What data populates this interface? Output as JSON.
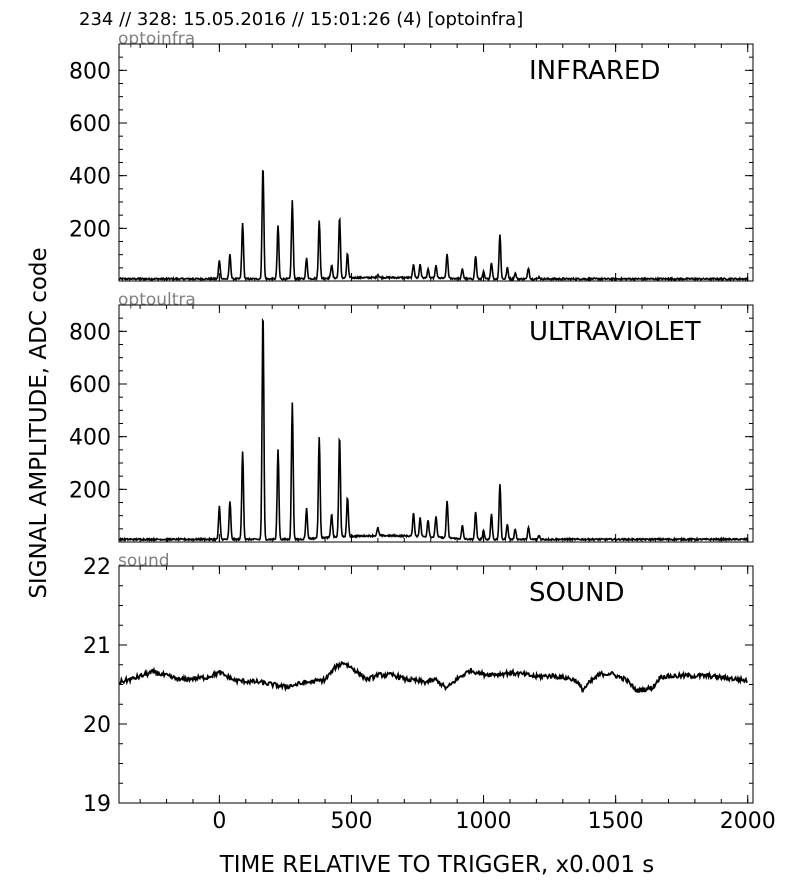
{
  "header": {
    "text": "234 // 328:   15.05.2016 // 15:01:26 (4)  [optoinfra]"
  },
  "ylabel": "SIGNAL AMPLITUDE,  ADC code",
  "xlabel": "TIME RELATIVE TO TRIGGER,   x0.001 s",
  "chart_data": [
    {
      "type": "line",
      "id": "infra",
      "tag": "optoinfra",
      "title": "INFRARED",
      "xlim": [
        -380,
        2020
      ],
      "ylim": [
        0,
        900
      ],
      "yticks": [
        200,
        400,
        600,
        800
      ],
      "xticks": [
        0,
        500,
        1000,
        1500,
        2000
      ],
      "baseline": 8,
      "line_color": "#000000",
      "peaks": [
        [
          0,
          80
        ],
        [
          40,
          100
        ],
        [
          88,
          220
        ],
        [
          165,
          440
        ],
        [
          222,
          210
        ],
        [
          276,
          305
        ],
        [
          330,
          85
        ],
        [
          378,
          230
        ],
        [
          425,
          60
        ],
        [
          455,
          240
        ],
        [
          485,
          100
        ],
        [
          600,
          20
        ],
        [
          735,
          60
        ],
        [
          760,
          60
        ],
        [
          790,
          40
        ],
        [
          820,
          55
        ],
        [
          862,
          100
        ],
        [
          920,
          45
        ],
        [
          970,
          95
        ],
        [
          1000,
          35
        ],
        [
          1030,
          70
        ],
        [
          1062,
          175
        ],
        [
          1090,
          50
        ],
        [
          1120,
          30
        ],
        [
          1170,
          50
        ],
        [
          1210,
          15
        ]
      ]
    },
    {
      "type": "line",
      "id": "ultra",
      "tag": "optoultra",
      "title": "ULTRAVIOLET",
      "xlim": [
        -380,
        2020
      ],
      "ylim": [
        0,
        900
      ],
      "yticks": [
        200,
        400,
        600,
        800
      ],
      "xticks": [
        0,
        500,
        1000,
        1500,
        2000
      ],
      "baseline": 10,
      "line_color": "#000000",
      "peaks": [
        [
          0,
          135
        ],
        [
          40,
          155
        ],
        [
          88,
          345
        ],
        [
          165,
          880
        ],
        [
          222,
          350
        ],
        [
          276,
          530
        ],
        [
          330,
          125
        ],
        [
          378,
          390
        ],
        [
          425,
          100
        ],
        [
          455,
          395
        ],
        [
          485,
          160
        ],
        [
          600,
          40
        ],
        [
          735,
          100
        ],
        [
          760,
          80
        ],
        [
          790,
          75
        ],
        [
          820,
          90
        ],
        [
          862,
          150
        ],
        [
          920,
          60
        ],
        [
          970,
          115
        ],
        [
          1000,
          45
        ],
        [
          1030,
          105
        ],
        [
          1062,
          220
        ],
        [
          1090,
          70
        ],
        [
          1120,
          50
        ],
        [
          1170,
          55
        ],
        [
          1210,
          25
        ]
      ]
    },
    {
      "type": "line",
      "id": "sound",
      "tag": "sound",
      "title": "SOUND",
      "xlim": [
        -380,
        2020
      ],
      "ylim": [
        19,
        22
      ],
      "yticks": [
        19,
        20,
        21,
        22
      ],
      "xticks": [
        0,
        500,
        1000,
        1500,
        2000
      ],
      "line_color": "#000000",
      "points": [
        [
          -380,
          20.53
        ],
        [
          -330,
          20.57
        ],
        [
          -250,
          20.66
        ],
        [
          -200,
          20.61
        ],
        [
          -150,
          20.56
        ],
        [
          -50,
          20.59
        ],
        [
          0,
          20.65
        ],
        [
          60,
          20.55
        ],
        [
          150,
          20.53
        ],
        [
          250,
          20.47
        ],
        [
          320,
          20.52
        ],
        [
          400,
          20.56
        ],
        [
          440,
          20.72
        ],
        [
          470,
          20.78
        ],
        [
          510,
          20.69
        ],
        [
          560,
          20.56
        ],
        [
          600,
          20.62
        ],
        [
          660,
          20.62
        ],
        [
          700,
          20.57
        ],
        [
          780,
          20.53
        ],
        [
          820,
          20.56
        ],
        [
          860,
          20.45
        ],
        [
          900,
          20.57
        ],
        [
          950,
          20.68
        ],
        [
          1000,
          20.63
        ],
        [
          1060,
          20.63
        ],
        [
          1100,
          20.65
        ],
        [
          1150,
          20.63
        ],
        [
          1200,
          20.6
        ],
        [
          1260,
          20.61
        ],
        [
          1320,
          20.58
        ],
        [
          1350,
          20.55
        ],
        [
          1375,
          20.43
        ],
        [
          1400,
          20.52
        ],
        [
          1440,
          20.63
        ],
        [
          1480,
          20.64
        ],
        [
          1540,
          20.56
        ],
        [
          1580,
          20.42
        ],
        [
          1640,
          20.46
        ],
        [
          1670,
          20.6
        ],
        [
          1750,
          20.61
        ],
        [
          1850,
          20.61
        ],
        [
          2000,
          20.55
        ]
      ]
    }
  ]
}
